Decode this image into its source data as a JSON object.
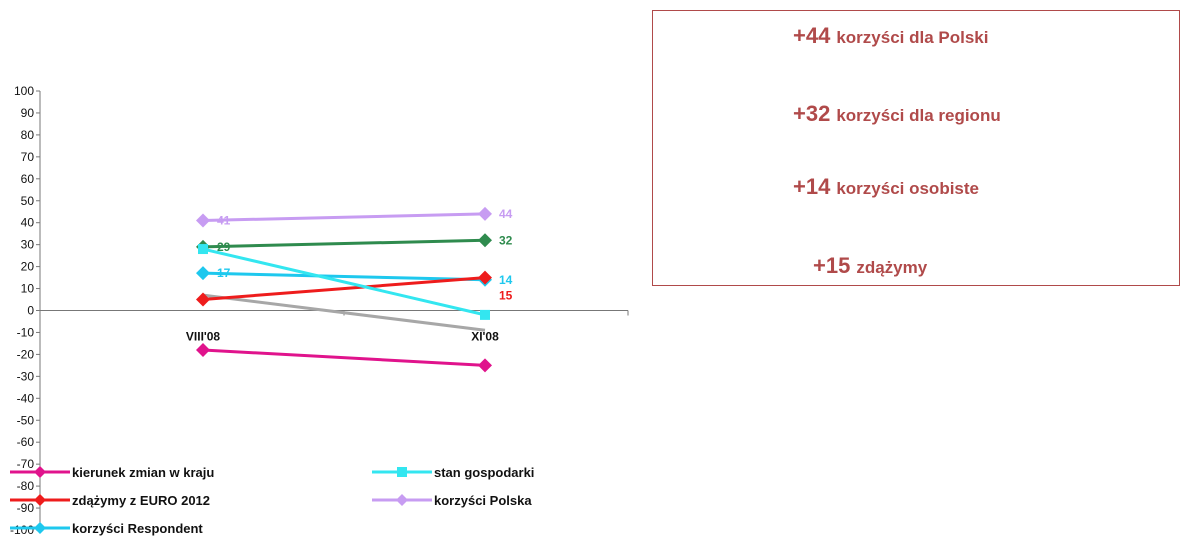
{
  "chart_data": {
    "type": "line",
    "categories": [
      "VIII'08",
      "XI'08"
    ],
    "ylim": [
      -100,
      100
    ],
    "yticks": [
      100,
      90,
      80,
      70,
      60,
      50,
      40,
      30,
      20,
      10,
      0,
      -10,
      -20,
      -30,
      -40,
      -50,
      -60,
      -70,
      -80,
      -90,
      -100
    ],
    "ytick_labels": [
      "100",
      "90",
      "80",
      "70",
      "60",
      "50",
      "40",
      "30",
      "20",
      "10",
      "0",
      "-10",
      "-20",
      "-30",
      "-40",
      "-50",
      "-60",
      "-70",
      "-80",
      "-90",
      "-100"
    ],
    "grid": false,
    "legend_position": "bottom-left",
    "series": [
      {
        "name": "kierunek zmian w kraju",
        "values": [
          -18,
          -25
        ],
        "color": "#e0138c",
        "marker": "diamond",
        "labels": [
          null,
          null
        ]
      },
      {
        "name": "stan gospodarki",
        "values": [
          28,
          -2
        ],
        "color": "#33e6f0",
        "marker": "square",
        "labels": [
          null,
          null
        ]
      },
      {
        "name": "zdążymy z EURO 2012",
        "values": [
          5,
          15
        ],
        "color": "#ee1c1c",
        "marker": "diamond",
        "labels": [
          null,
          "15"
        ]
      },
      {
        "name": "korzyści Polska",
        "values": [
          41,
          44
        ],
        "color": "#c79cf2",
        "marker": "diamond",
        "labels": [
          "41",
          "44"
        ]
      },
      {
        "name": "korzyści Respondent",
        "values": [
          17,
          14
        ],
        "color": "#1ec8ee",
        "marker": "diamond",
        "labels": [
          "17",
          "14"
        ]
      },
      {
        "name": "",
        "values": [
          29,
          32
        ],
        "color": "#2f8b4e",
        "marker": "diamond",
        "labels": [
          "29",
          "32"
        ]
      },
      {
        "name": "",
        "values": [
          7,
          -9
        ],
        "color": "#a7a7a7",
        "marker": "none",
        "labels": [
          null,
          null
        ]
      }
    ]
  },
  "summary": {
    "items": [
      {
        "value": "+44",
        "text": "korzyści dla Polski"
      },
      {
        "value": "+32",
        "text": "korzyści dla regionu"
      },
      {
        "value": "+14",
        "text": "korzyści osobiste"
      },
      {
        "value": "+15",
        "text": "zdążymy"
      }
    ],
    "color": "#b04a4a"
  }
}
